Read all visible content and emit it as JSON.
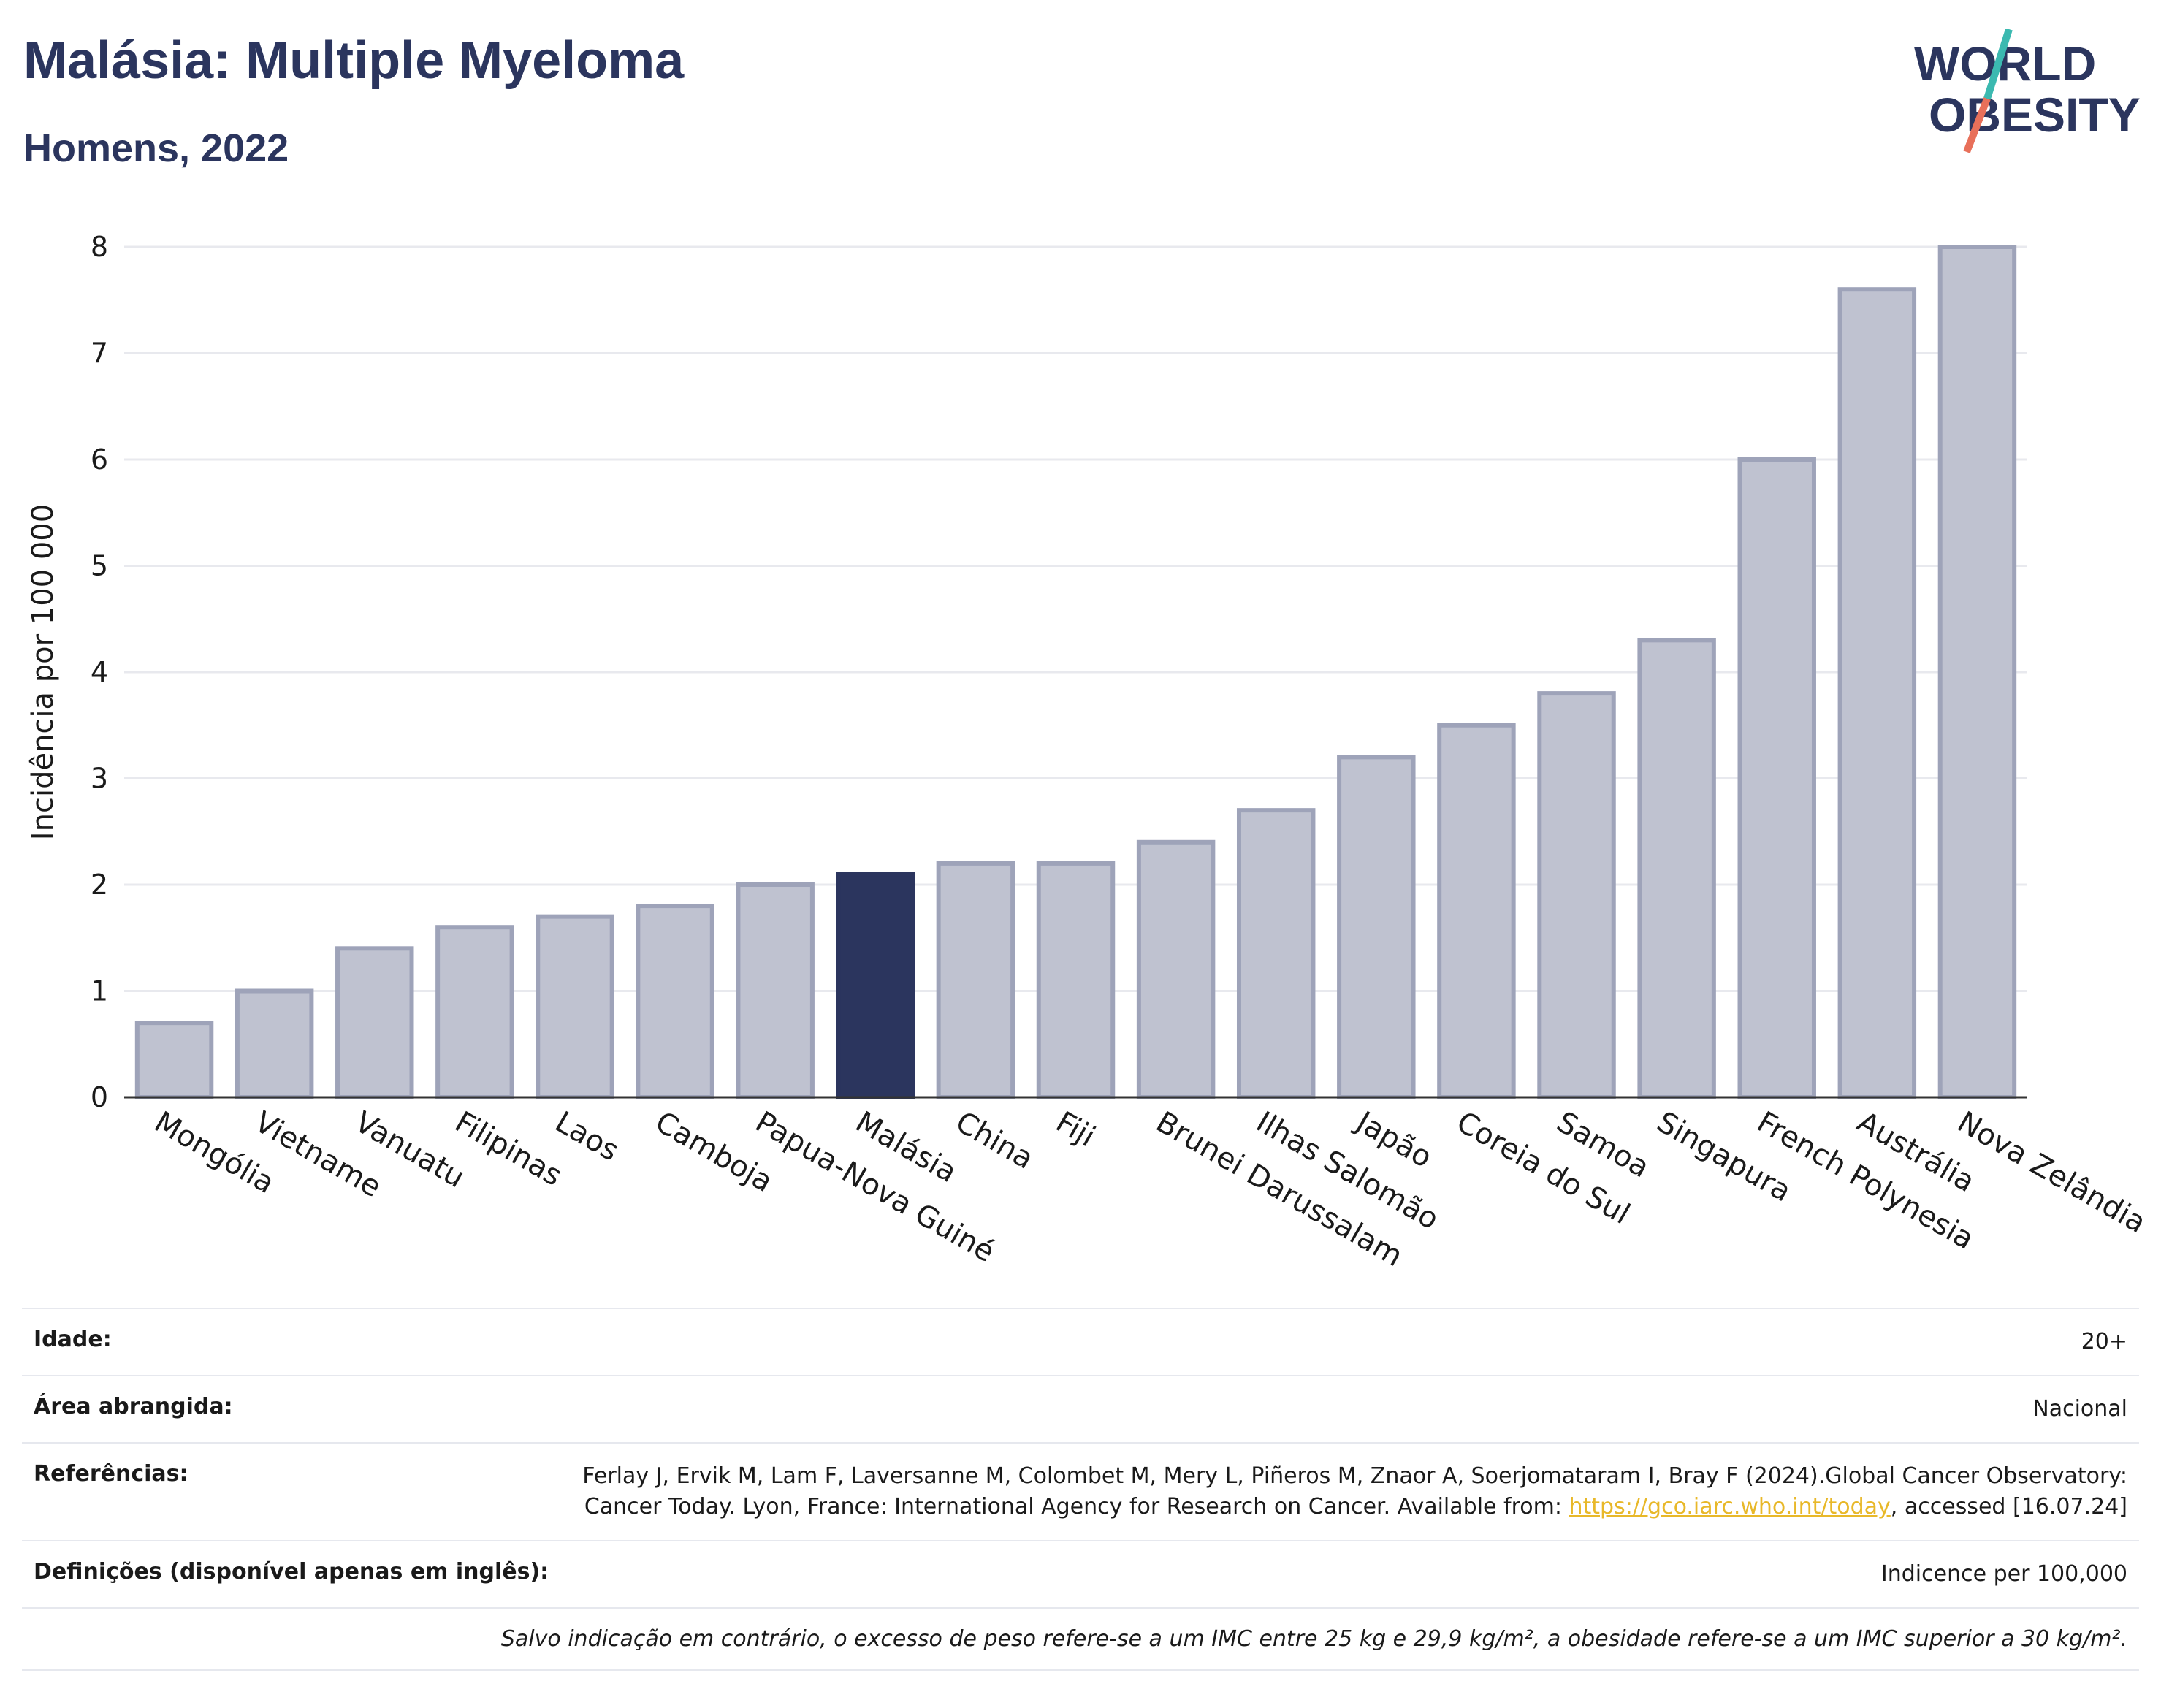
{
  "header": {
    "title": "Malásia: Multiple Myeloma",
    "subtitle": "Homens, 2022"
  },
  "logo": {
    "line1": "WORLD",
    "line2": "OBESITY"
  },
  "colors": {
    "highlight": "#2b355e",
    "bar_fill": "#bfc2d0",
    "bar_stroke": "#9ea3b9",
    "grid": "#e8e9ee",
    "axis": "#333333",
    "logo_slash_teal": "#3bb9b0",
    "logo_slash_coral": "#e8705a",
    "link": "#e8b829"
  },
  "chart_data": {
    "type": "bar",
    "ylabel": "Incidência por 100 000",
    "xlabel": "",
    "ylim": [
      0,
      8
    ],
    "yticks": [
      0,
      1,
      2,
      3,
      4,
      5,
      6,
      7,
      8
    ],
    "grid": true,
    "highlight": "Malásia",
    "categories": [
      "Mongólia",
      "Vietname",
      "Vanuatu",
      "Filipinas",
      "Laos",
      "Camboja",
      "Papua-Nova Guiné",
      "Malásia",
      "China",
      "Fiji",
      "Brunei Darussalam",
      "Ilhas Salomão",
      "Japão",
      "Coreia do Sul",
      "Samoa",
      "Singapura",
      "French Polynesia",
      "Austrália",
      "Nova Zelândia"
    ],
    "values": [
      0.7,
      1.0,
      1.4,
      1.6,
      1.7,
      1.8,
      2.0,
      2.1,
      2.2,
      2.2,
      2.4,
      2.7,
      3.2,
      3.5,
      3.8,
      4.3,
      6.0,
      7.6,
      8.0
    ]
  },
  "meta": {
    "age_label": "Idade:",
    "age_value": "20+",
    "area_label": "Área abrangida:",
    "area_value": "Nacional",
    "ref_label": "Referências:",
    "ref_text": "Ferlay J, Ervik M, Lam F, Laversanne M, Colombet M, Mery L, Piñeros M, Znaor A, Soerjomataram I, Bray F (2024).Global Cancer Observatory: Cancer Today. Lyon, France: International Agency for Research on Cancer. Available from:",
    "ref_link": "https://gco.iarc.who.int/today",
    "ref_tail": ", accessed [16.07.24]",
    "def_label": "Definições (disponível apenas em inglês):",
    "def_value": "Indicence per 100,000",
    "note": "Salvo indicação em contrário, o excesso de peso refere-se a um IMC entre 25 kg e 29,9 kg/m², a obesidade refere-se a um IMC superior a 30 kg/m²."
  }
}
